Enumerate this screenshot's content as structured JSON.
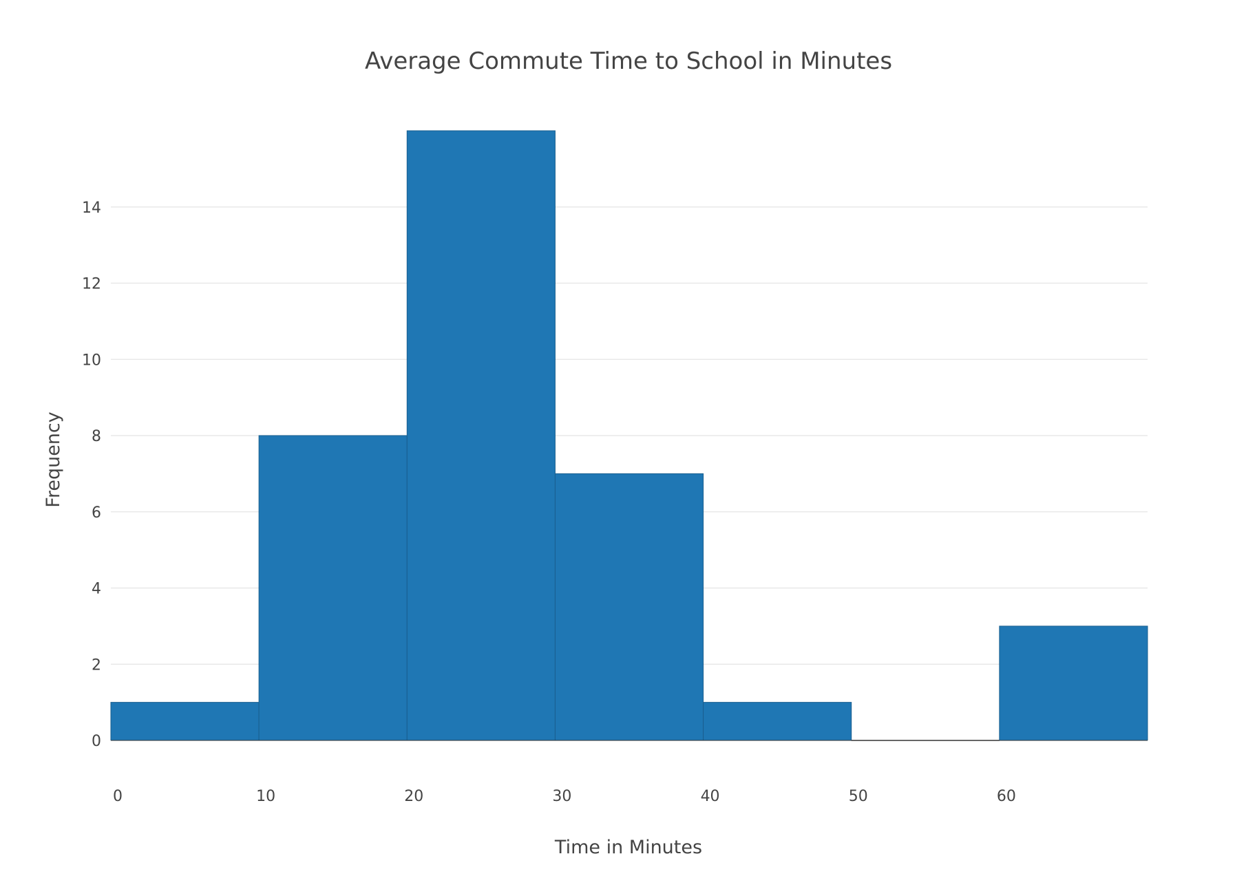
{
  "chart_data": {
    "type": "bar",
    "subtype": "histogram",
    "title": "Average Commute Time to School in Minutes",
    "xlabel": "Time in Minutes",
    "ylabel": "Frequency",
    "bins": [
      {
        "start": 0,
        "end": 10,
        "count": 1
      },
      {
        "start": 10,
        "end": 20,
        "count": 8
      },
      {
        "start": 20,
        "end": 30,
        "count": 16
      },
      {
        "start": 30,
        "end": 40,
        "count": 7
      },
      {
        "start": 40,
        "end": 50,
        "count": 1
      },
      {
        "start": 50,
        "end": 60,
        "count": 0
      },
      {
        "start": 60,
        "end": 70,
        "count": 3
      }
    ],
    "x_ticks": [
      "0",
      "10",
      "20",
      "30",
      "40",
      "50",
      "60"
    ],
    "y_ticks": [
      "0",
      "2",
      "4",
      "6",
      "8",
      "10",
      "12",
      "14"
    ],
    "xlim": [
      0,
      70
    ],
    "ylim": [
      0,
      16
    ],
    "grid": true,
    "legend": "none",
    "colors": {
      "bar": "#1f77b4",
      "grid": "#e8e8e8",
      "text": "#444444",
      "tick": "#444444"
    }
  }
}
